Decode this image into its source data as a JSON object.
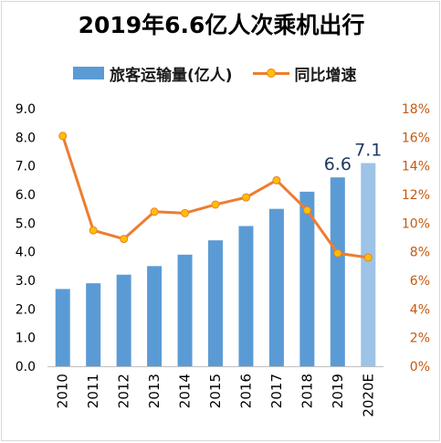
{
  "chart_data": {
    "type": "bar",
    "title": "2019年6.6亿人次乘机出行",
    "categories": [
      "2010",
      "2011",
      "2012",
      "2013",
      "2014",
      "2015",
      "2016",
      "2017",
      "2018",
      "2019",
      "2020E"
    ],
    "series": [
      {
        "name": "旅客运输量(亿人)",
        "type": "bar",
        "axis": "left",
        "values": [
          2.7,
          2.9,
          3.2,
          3.5,
          3.9,
          4.4,
          4.9,
          5.5,
          6.1,
          6.6,
          7.1
        ]
      },
      {
        "name": "同比增速",
        "type": "line",
        "axis": "right",
        "values": [
          16.1,
          9.5,
          8.9,
          10.8,
          10.7,
          11.3,
          11.8,
          13.0,
          10.9,
          7.9,
          7.6
        ]
      }
    ],
    "left_axis": {
      "min": 0,
      "max": 9,
      "step": 1,
      "ticks": [
        "0.0",
        "1.0",
        "2.0",
        "3.0",
        "4.0",
        "5.0",
        "6.0",
        "7.0",
        "8.0",
        "9.0"
      ]
    },
    "right_axis": {
      "min": 0,
      "max": 18,
      "step": 2,
      "ticks": [
        "0%",
        "2%",
        "4%",
        "6%",
        "8%",
        "10%",
        "12%",
        "14%",
        "16%",
        "18%"
      ]
    },
    "data_labels": [
      {
        "category": "2019",
        "text": "6.6"
      },
      {
        "category": "2020E",
        "text": "7.1"
      }
    ],
    "highlight_category": "2020E",
    "colors": {
      "bar": "#5b9bd5",
      "bar_projected": "#9dc3e6",
      "line": "#ed7d31",
      "marker_fill": "#ffc000",
      "left_axis_text": "#000000",
      "right_axis_text": "#c55a11",
      "data_label": "#1f3864"
    },
    "grid": false,
    "legend_position": "top"
  }
}
